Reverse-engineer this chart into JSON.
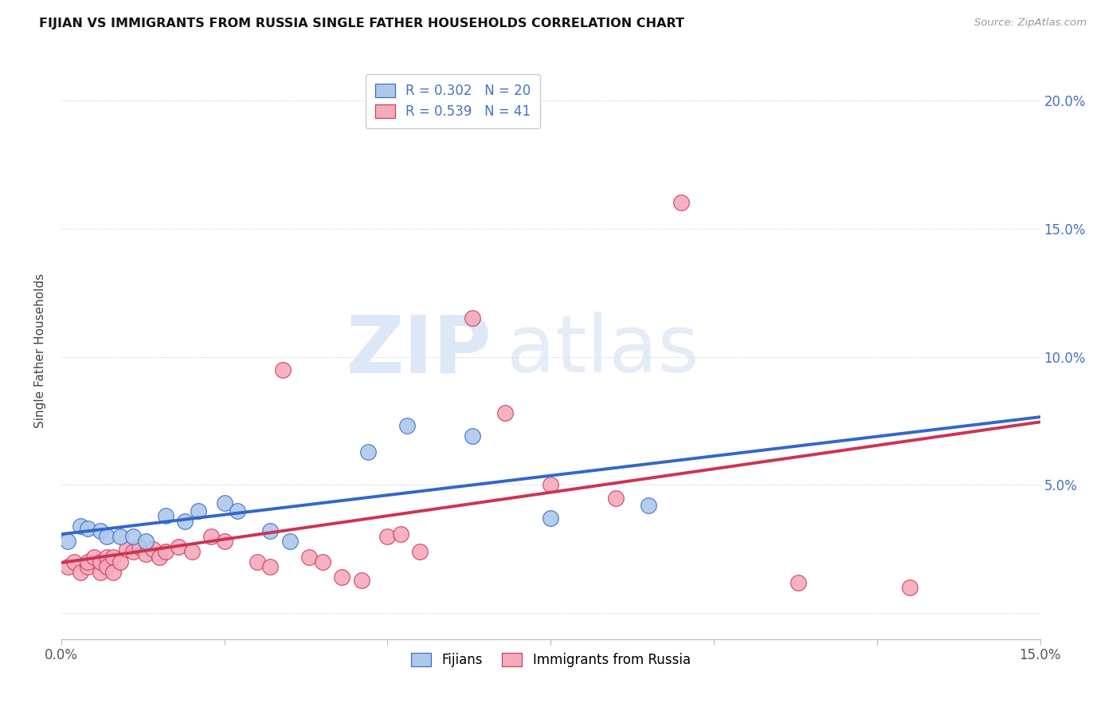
{
  "title": "FIJIAN VS IMMIGRANTS FROM RUSSIA SINGLE FATHER HOUSEHOLDS CORRELATION CHART",
  "source": "Source: ZipAtlas.com",
  "ylabel_label": "Single Father Households",
  "xlim": [
    0.0,
    0.15
  ],
  "ylim": [
    -0.01,
    0.215
  ],
  "fijian_R": "0.302",
  "fijian_N": "20",
  "russia_R": "0.539",
  "russia_N": "41",
  "fijian_color": "#adc8e8",
  "russia_color": "#f5aabc",
  "fijian_line_color": "#3366cc",
  "russia_line_color": "#cc3355",
  "fijian_points": [
    [
      0.001,
      0.028
    ],
    [
      0.003,
      0.034
    ],
    [
      0.004,
      0.033
    ],
    [
      0.006,
      0.032
    ],
    [
      0.007,
      0.03
    ],
    [
      0.009,
      0.03
    ],
    [
      0.011,
      0.03
    ],
    [
      0.013,
      0.028
    ],
    [
      0.016,
      0.038
    ],
    [
      0.019,
      0.036
    ],
    [
      0.021,
      0.04
    ],
    [
      0.025,
      0.043
    ],
    [
      0.027,
      0.04
    ],
    [
      0.032,
      0.032
    ],
    [
      0.035,
      0.028
    ],
    [
      0.047,
      0.063
    ],
    [
      0.053,
      0.073
    ],
    [
      0.063,
      0.069
    ],
    [
      0.075,
      0.037
    ],
    [
      0.09,
      0.042
    ]
  ],
  "russia_points": [
    [
      0.001,
      0.018
    ],
    [
      0.002,
      0.02
    ],
    [
      0.003,
      0.016
    ],
    [
      0.004,
      0.018
    ],
    [
      0.004,
      0.02
    ],
    [
      0.005,
      0.022
    ],
    [
      0.006,
      0.016
    ],
    [
      0.006,
      0.02
    ],
    [
      0.007,
      0.022
    ],
    [
      0.007,
      0.018
    ],
    [
      0.008,
      0.022
    ],
    [
      0.008,
      0.016
    ],
    [
      0.009,
      0.02
    ],
    [
      0.01,
      0.025
    ],
    [
      0.011,
      0.024
    ],
    [
      0.012,
      0.026
    ],
    [
      0.013,
      0.023
    ],
    [
      0.014,
      0.025
    ],
    [
      0.015,
      0.022
    ],
    [
      0.016,
      0.024
    ],
    [
      0.018,
      0.026
    ],
    [
      0.02,
      0.024
    ],
    [
      0.023,
      0.03
    ],
    [
      0.025,
      0.028
    ],
    [
      0.03,
      0.02
    ],
    [
      0.032,
      0.018
    ],
    [
      0.034,
      0.095
    ],
    [
      0.038,
      0.022
    ],
    [
      0.04,
      0.02
    ],
    [
      0.043,
      0.014
    ],
    [
      0.046,
      0.013
    ],
    [
      0.05,
      0.03
    ],
    [
      0.052,
      0.031
    ],
    [
      0.055,
      0.024
    ],
    [
      0.063,
      0.115
    ],
    [
      0.068,
      0.078
    ],
    [
      0.075,
      0.05
    ],
    [
      0.085,
      0.045
    ],
    [
      0.095,
      0.16
    ],
    [
      0.113,
      0.012
    ],
    [
      0.13,
      0.01
    ]
  ]
}
